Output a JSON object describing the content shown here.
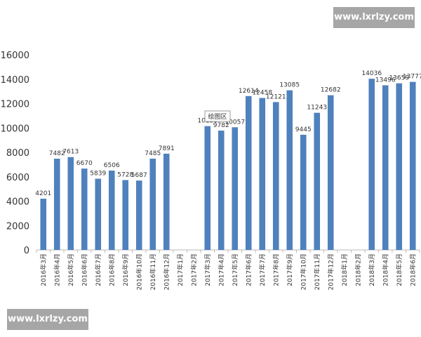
{
  "chart_data": {
    "type": "bar",
    "categories": [
      "2016年3月",
      "2016年4月",
      "2016年5月",
      "2016年6月",
      "2016年7月",
      "2016年8月",
      "2016年9月",
      "2016年10月",
      "2016年11月",
      "2016年12月",
      "2017年1月",
      "2017年2月",
      "2017年3月",
      "2017年4月",
      "2017年5月",
      "2017年6月",
      "2017年7月",
      "2017年8月",
      "2017年9月",
      "2017年10月",
      "2017年11月",
      "2017年12月",
      "2018年1月",
      "2018年2月",
      "2018年3月",
      "2018年4月",
      "2018年5月",
      "2018年6月"
    ],
    "values": [
      4201,
      7482,
      7613,
      6670,
      5839,
      6506,
      5728,
      5687,
      7485,
      7891,
      null,
      null,
      10150,
      9782,
      10057,
      12614,
      12458,
      12121,
      13085,
      9445,
      11243,
      12682,
      null,
      null,
      14036,
      13496,
      13659,
      13777
    ],
    "color": "#4f81bd",
    "ylim": [
      0,
      16000
    ],
    "yticks": [
      0,
      2000,
      4000,
      6000,
      8000,
      10000,
      12000,
      14000,
      16000
    ],
    "grid": false
  },
  "tooltip": "绘图区",
  "watermarks": [
    "www.lxrlzy.com",
    "www.lxrlzy.com"
  ]
}
